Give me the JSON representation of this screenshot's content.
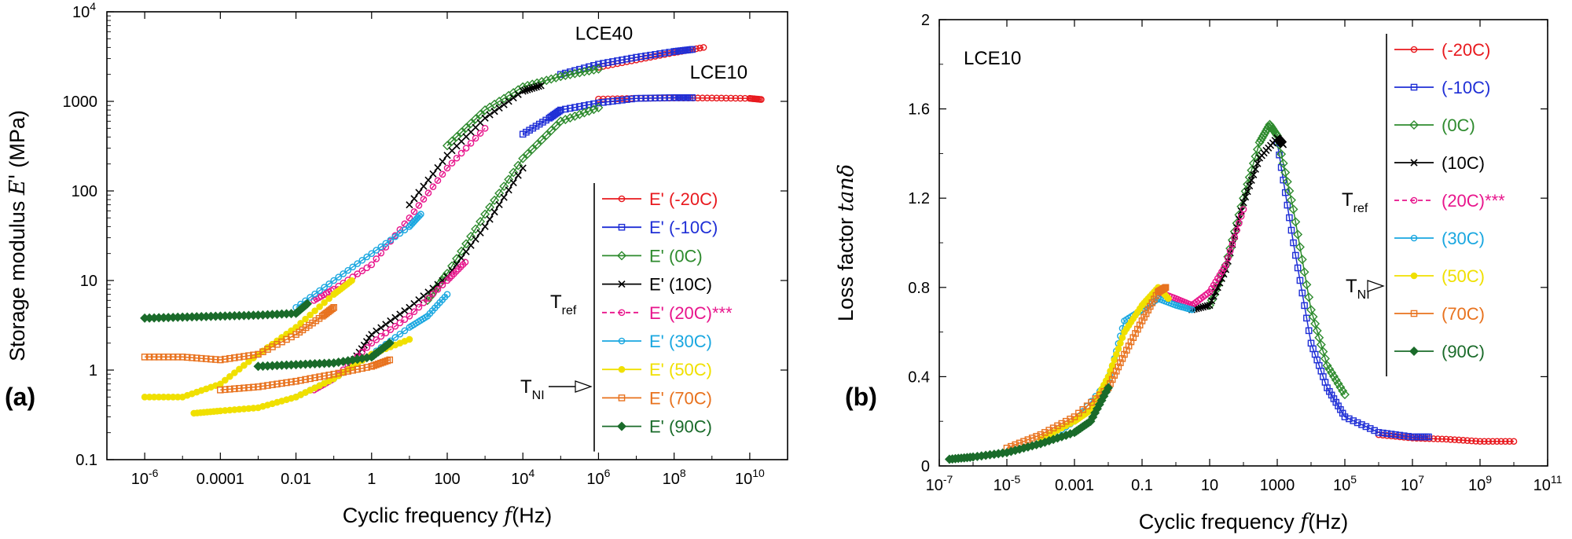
{
  "figure": {
    "panel_a_label": "(a)",
    "panel_b_label": "(b)"
  },
  "chart_data": [
    {
      "type": "line",
      "panel": "(a)",
      "xscale": "log",
      "yscale": "log",
      "xlim": [
        1e-07,
        100000000000.0
      ],
      "ylim": [
        0.1,
        10000
      ],
      "xlabel": "Cyclic frequency f (Hz)",
      "xlabel_main": "Cyclic frequency ",
      "xlabel_var": "f",
      "xlabel_unit": "(Hz)",
      "ylabel": "Storage modulus E' (MPa)",
      "ylabel_main": "Storage modulus ",
      "ylabel_var": "E'",
      "ylabel_unit": " (MPa)",
      "x_ticks": [
        {
          "value": 1e-06,
          "base": "10",
          "exp": "-6"
        },
        {
          "value": 0.0001,
          "label": "0.0001"
        },
        {
          "value": 0.01,
          "label": "0.01"
        },
        {
          "value": 1,
          "label": "1"
        },
        {
          "value": 100,
          "label": "100"
        },
        {
          "value": 10000.0,
          "base": "10",
          "exp": "4"
        },
        {
          "value": 1000000.0,
          "base": "10",
          "exp": "6"
        },
        {
          "value": 100000000.0,
          "base": "10",
          "exp": "8"
        },
        {
          "value": 10000000000.0,
          "base": "10",
          "exp": "10"
        }
      ],
      "y_ticks": [
        {
          "value": 0.1,
          "label": "0.1"
        },
        {
          "value": 1,
          "label": "1"
        },
        {
          "value": 10,
          "label": "10"
        },
        {
          "value": 100,
          "label": "100"
        },
        {
          "value": 1000,
          "label": "1000"
        },
        {
          "value": 10000,
          "base": "10",
          "exp": "4"
        }
      ],
      "annotations": {
        "lce40": "LCE40",
        "lce10": "LCE10",
        "tref": "T",
        "tref_sub": "ref",
        "tni": "T",
        "tni_sub": "NI"
      },
      "series": [
        {
          "name": "E' (-20C)",
          "color": "#e8191e",
          "marker": "circle",
          "fill": false,
          "LCE40": [
            [
              1000000.0,
              2400
            ],
            [
              10000000.0,
              2900
            ],
            [
              100000000.0,
              3500
            ],
            [
              600000000.0,
              4000
            ]
          ],
          "LCE10": [
            [
              1000000.0,
              1060
            ],
            [
              10000000.0,
              1080
            ],
            [
              100000000.0,
              1090
            ],
            [
              1000000000.0,
              1090
            ],
            [
              10000000000.0,
              1080
            ],
            [
              20000000000.0,
              1050
            ]
          ]
        },
        {
          "name": "E' (-10C)",
          "color": "#1f2fd6",
          "marker": "square",
          "fill": false,
          "LCE40": [
            [
              100000.0,
              2000
            ],
            [
              1000000.0,
              2600
            ],
            [
              10000000.0,
              3100
            ],
            [
              100000000.0,
              3600
            ],
            [
              300000000.0,
              3800
            ]
          ],
          "LCE10": [
            [
              10000.0,
              430
            ],
            [
              50000.0,
              650
            ],
            [
              100000.0,
              800
            ],
            [
              1000000.0,
              960
            ],
            [
              10000000.0,
              1080
            ],
            [
              100000000.0,
              1100
            ],
            [
              300000000.0,
              1100
            ]
          ]
        },
        {
          "name": "E' (0C)",
          "color": "#2e8b2e",
          "marker": "diamond",
          "fill": false,
          "LCE40": [
            [
              100,
              320
            ],
            [
              1000,
              800
            ],
            [
              10000.0,
              1450
            ],
            [
              100000.0,
              1900
            ],
            [
              1000000.0,
              2300
            ]
          ],
          "LCE10": [
            [
              30,
              6
            ],
            [
              100,
              12
            ],
            [
              1000,
              55
            ],
            [
              10000.0,
              230
            ],
            [
              100000.0,
              600
            ],
            [
              1000000.0,
              850
            ]
          ]
        },
        {
          "name": "E' (10C)",
          "color": "#000000",
          "marker": "x",
          "fill": false,
          "LCE40": [
            [
              10,
              70
            ],
            [
              100,
              250
            ],
            [
              1000,
              650
            ],
            [
              10000.0,
              1300
            ],
            [
              30000.0,
              1500
            ]
          ],
          "LCE10": [
            [
              0.3,
              1.2
            ],
            [
              1,
              2.5
            ],
            [
              10,
              5
            ],
            [
              100,
              11
            ],
            [
              1000,
              40
            ],
            [
              10000.0,
              180
            ]
          ]
        },
        {
          "name": "E' (20C)***",
          "color": "#e8158c",
          "marker": "circle",
          "fill": false,
          "dashed": true,
          "LCE40": [
            [
              0.03,
              6
            ],
            [
              0.1,
              8
            ],
            [
              1,
              15
            ],
            [
              10,
              50
            ],
            [
              100,
              180
            ],
            [
              1000,
              500
            ]
          ],
          "LCE10": [
            [
              0.03,
              0.6
            ],
            [
              0.1,
              0.8
            ],
            [
              1,
              2
            ],
            [
              10,
              4
            ],
            [
              100,
              10
            ],
            [
              300,
              16
            ]
          ]
        },
        {
          "name": "E' (30C)",
          "color": "#1aa7e0",
          "marker": "circle",
          "fill": false,
          "LCE40": [
            [
              0.01,
              5
            ],
            [
              0.1,
              10
            ],
            [
              1,
              20
            ],
            [
              10,
              40
            ],
            [
              20,
              55
            ]
          ],
          "LCE10": [
            [
              0.01,
              0.5
            ],
            [
              0.1,
              0.8
            ],
            [
              1,
              1.5
            ],
            [
              10,
              3
            ],
            [
              30,
              4
            ],
            [
              100,
              7
            ]
          ]
        },
        {
          "name": "E' (50C)",
          "color": "#f0e000",
          "marker": "circle",
          "fill": true,
          "LCE40": [
            [
              1e-06,
              0.5
            ],
            [
              1e-05,
              0.5
            ],
            [
              0.0001,
              0.7
            ],
            [
              0.001,
              1.5
            ],
            [
              0.01,
              3
            ],
            [
              0.1,
              7
            ],
            [
              0.3,
              10
            ]
          ],
          "LCE10": [
            [
              2e-05,
              0.33
            ],
            [
              0.0001,
              0.35
            ],
            [
              0.001,
              0.38
            ],
            [
              0.01,
              0.5
            ],
            [
              0.1,
              0.8
            ],
            [
              1,
              1.5
            ],
            [
              10,
              2.2
            ]
          ]
        },
        {
          "name": "E' (70C)",
          "color": "#e8721e",
          "marker": "square",
          "fill": false,
          "LCE40": [
            [
              1e-06,
              1.4
            ],
            [
              1e-05,
              1.4
            ],
            [
              0.0001,
              1.3
            ],
            [
              0.001,
              1.5
            ],
            [
              0.01,
              2.5
            ],
            [
              0.05,
              4
            ],
            [
              0.1,
              5
            ]
          ],
          "LCE10": [
            [
              0.0001,
              0.6
            ],
            [
              0.001,
              0.65
            ],
            [
              0.01,
              0.75
            ],
            [
              0.1,
              0.9
            ],
            [
              1,
              1.1
            ],
            [
              3,
              1.3
            ]
          ]
        },
        {
          "name": "E' (90C)",
          "color": "#1a6b2a",
          "marker": "diamond",
          "fill": true,
          "LCE40": [
            [
              1e-06,
              3.8
            ],
            [
              1e-05,
              3.9
            ],
            [
              0.0001,
              4.0
            ],
            [
              0.001,
              4.1
            ],
            [
              0.01,
              4.3
            ],
            [
              0.02,
              5.5
            ]
          ],
          "LCE10": [
            [
              0.001,
              1.1
            ],
            [
              0.01,
              1.15
            ],
            [
              0.1,
              1.2
            ],
            [
              1,
              1.4
            ],
            [
              3,
              2
            ]
          ]
        }
      ]
    },
    {
      "type": "line",
      "panel": "(b)",
      "xscale": "log",
      "yscale": "linear",
      "xlim": [
        1e-07,
        100000000000.0
      ],
      "ylim": [
        0,
        2
      ],
      "xlabel": "Cyclic frequency f (Hz)",
      "xlabel_main": "Cyclic frequency ",
      "xlabel_var": "f",
      "xlabel_unit": "(Hz)",
      "ylabel": "Loss factor tanδ",
      "ylabel_main": "Loss factor ",
      "ylabel_var": "tanδ",
      "x_ticks": [
        {
          "value": 1e-07,
          "base": "10",
          "exp": "-7"
        },
        {
          "value": 1e-05,
          "base": "10",
          "exp": "-5"
        },
        {
          "value": 0.001,
          "label": "0.001"
        },
        {
          "value": 0.1,
          "label": "0.1"
        },
        {
          "value": 10,
          "label": "10"
        },
        {
          "value": 1000,
          "label": "1000"
        },
        {
          "value": 100000.0,
          "base": "10",
          "exp": "5"
        },
        {
          "value": 10000000.0,
          "base": "10",
          "exp": "7"
        },
        {
          "value": 1000000000.0,
          "base": "10",
          "exp": "9"
        },
        {
          "value": 100000000000.0,
          "base": "10",
          "exp": "11"
        }
      ],
      "y_ticks": [
        {
          "value": 0,
          "label": "0"
        },
        {
          "value": 0.4,
          "label": "0.4"
        },
        {
          "value": 0.8,
          "label": "0.8"
        },
        {
          "value": 1.2,
          "label": "1.2"
        },
        {
          "value": 1.6,
          "label": "1.6"
        },
        {
          "value": 2,
          "label": "2"
        }
      ],
      "annotations": {
        "sample": "LCE10",
        "tref": "T",
        "tref_sub": "ref",
        "tni": "T",
        "tni_sub": "NI"
      },
      "series": [
        {
          "name": "(-20C)",
          "color": "#e8191e",
          "marker": "circle",
          "fill": false,
          "points": [
            [
              1000000.0,
              0.14
            ],
            [
              10000000.0,
              0.125
            ],
            [
              100000000.0,
              0.12
            ],
            [
              1000000000.0,
              0.11
            ],
            [
              10000000000.0,
              0.11
            ]
          ]
        },
        {
          "name": "(-10C)",
          "color": "#1f2fd6",
          "marker": "square",
          "fill": false,
          "points": [
            [
              1000,
              1.45
            ],
            [
              3000,
              1.0
            ],
            [
              10000.0,
              0.55
            ],
            [
              30000.0,
              0.35
            ],
            [
              100000.0,
              0.22
            ],
            [
              1000000.0,
              0.15
            ],
            [
              10000000.0,
              0.13
            ],
            [
              30000000.0,
              0.13
            ]
          ]
        },
        {
          "name": "(0C)",
          "color": "#2e8b2e",
          "marker": "diamond",
          "fill": false,
          "points": [
            [
              10,
              0.72
            ],
            [
              30,
              0.9
            ],
            [
              100,
              1.2
            ],
            [
              300,
              1.45
            ],
            [
              600,
              1.53
            ],
            [
              1000,
              1.48
            ],
            [
              3000,
              1.15
            ],
            [
              10000.0,
              0.7
            ],
            [
              30000.0,
              0.45
            ],
            [
              100000.0,
              0.32
            ]
          ]
        },
        {
          "name": "(10C)",
          "color": "#000000",
          "marker": "x",
          "fill": false,
          "points": [
            [
              3,
              0.7
            ],
            [
              10,
              0.72
            ],
            [
              30,
              0.88
            ],
            [
              100,
              1.18
            ],
            [
              300,
              1.38
            ],
            [
              1000,
              1.47
            ],
            [
              1500,
              1.44
            ]
          ]
        },
        {
          "name": "(20C)***",
          "color": "#e8158c",
          "marker": "circle",
          "fill": false,
          "dashed": true,
          "points": [
            [
              0.3,
              0.78
            ],
            [
              1,
              0.75
            ],
            [
              3,
              0.72
            ],
            [
              10,
              0.78
            ],
            [
              30,
              0.9
            ],
            [
              100,
              1.15
            ]
          ]
        },
        {
          "name": "(30C)",
          "color": "#1aa7e0",
          "marker": "circle",
          "fill": false,
          "points": [
            [
              0.0001,
              0.1
            ],
            [
              0.001,
              0.2
            ],
            [
              0.01,
              0.38
            ],
            [
              0.03,
              0.65
            ],
            [
              0.1,
              0.7
            ],
            [
              0.3,
              0.75
            ],
            [
              1,
              0.72
            ],
            [
              3,
              0.7
            ]
          ]
        },
        {
          "name": "(50C)",
          "color": "#f0e000",
          "marker": "circle",
          "fill": true,
          "points": [
            [
              0.0001,
              0.12
            ],
            [
              0.001,
              0.2
            ],
            [
              0.003,
              0.25
            ],
            [
              0.01,
              0.4
            ],
            [
              0.03,
              0.6
            ],
            [
              0.1,
              0.72
            ],
            [
              0.3,
              0.8
            ],
            [
              0.6,
              0.75
            ]
          ]
        },
        {
          "name": "(70C)",
          "color": "#e8721e",
          "marker": "square",
          "fill": false,
          "points": [
            [
              1e-05,
              0.08
            ],
            [
              0.0001,
              0.14
            ],
            [
              0.001,
              0.22
            ],
            [
              0.01,
              0.35
            ],
            [
              0.03,
              0.5
            ],
            [
              0.1,
              0.65
            ],
            [
              0.3,
              0.78
            ],
            [
              0.5,
              0.8
            ]
          ]
        },
        {
          "name": "(90C)",
          "color": "#1a6b2a",
          "marker": "diamond",
          "fill": true,
          "points": [
            [
              2e-07,
              0.03
            ],
            [
              1e-06,
              0.04
            ],
            [
              1e-05,
              0.06
            ],
            [
              0.0001,
              0.1
            ],
            [
              0.001,
              0.15
            ],
            [
              0.003,
              0.2
            ],
            [
              0.01,
              0.35
            ]
          ]
        }
      ]
    }
  ]
}
